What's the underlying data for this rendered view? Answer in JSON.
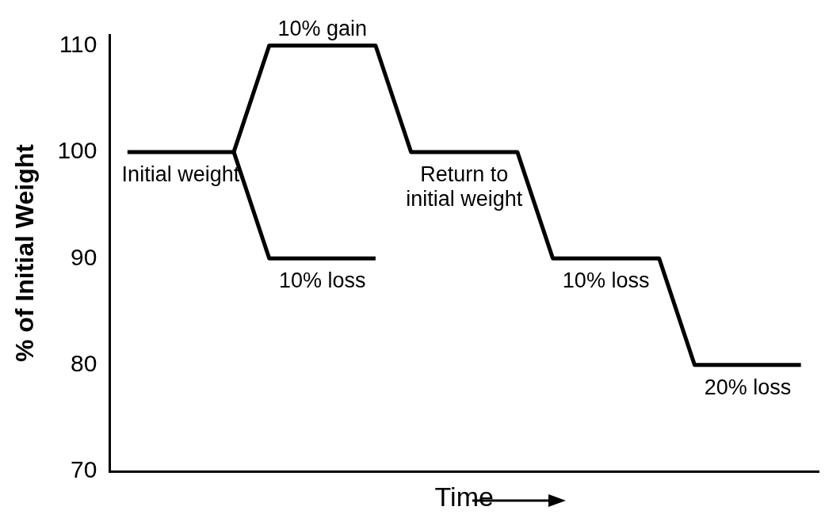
{
  "chart_data": {
    "type": "line",
    "xlabel": "Time",
    "ylabel": "% of Initial Weight",
    "categories": [
      null,
      null,
      null,
      null,
      null,
      null,
      null,
      null,
      null,
      null,
      null,
      null,
      null,
      null,
      null,
      null,
      null,
      null,
      null,
      null
    ],
    "ylim": [
      70,
      111
    ],
    "yticks": [
      70,
      80,
      90,
      100,
      110
    ],
    "tick_labels": "y",
    "grid": false,
    "legend": false,
    "marker": "none",
    "line_style": "solid",
    "series": [
      {
        "color": "#000000",
        "values": [
          100,
          100,
          100,
          100,
          110,
          110,
          110,
          110,
          100,
          100,
          100,
          100,
          90,
          90,
          90,
          90,
          80,
          80,
          80,
          80
        ]
      },
      {
        "color": "#000000",
        "values": [
          null,
          null,
          null,
          100,
          90,
          90,
          90,
          90,
          null,
          null,
          null,
          null,
          null,
          null,
          null,
          null,
          null,
          null,
          null,
          null
        ]
      }
    ],
    "annotations": [
      "Initial weight",
      "10% gain",
      "10% loss",
      "Return to initial weight",
      "10% loss",
      "20% loss"
    ]
  }
}
